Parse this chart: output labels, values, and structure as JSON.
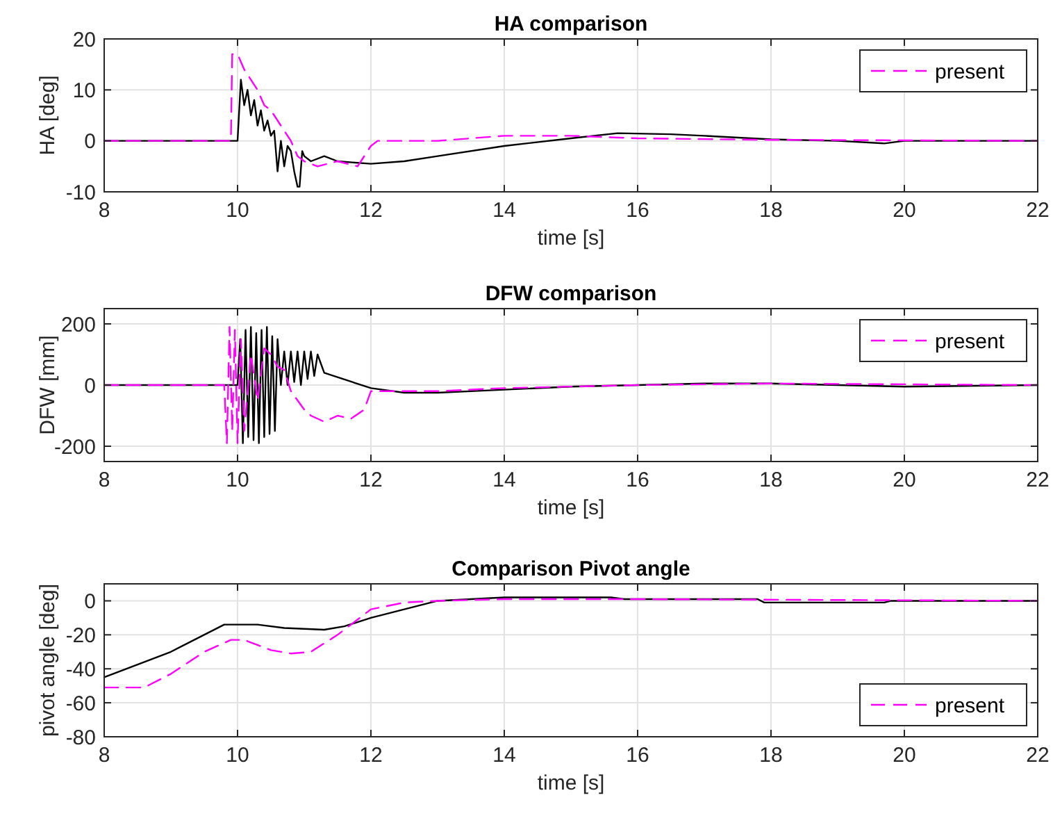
{
  "chart_data": [
    {
      "type": "line",
      "title": "HA comparison",
      "xlabel": "time [s]",
      "ylabel": "HA [deg]",
      "xlim": [
        8,
        22
      ],
      "xticks": [
        8,
        10,
        12,
        14,
        16,
        18,
        20,
        22
      ],
      "ylim": [
        -10,
        20
      ],
      "yticks": [
        -10,
        0,
        10,
        20
      ],
      "grid": true,
      "legend": "top right",
      "series": [
        {
          "color": "#000000",
          "line_style": "solid",
          "x": [
            8,
            10.0,
            10.05,
            10.1,
            10.15,
            10.2,
            10.25,
            10.3,
            10.35,
            10.4,
            10.45,
            10.5,
            10.55,
            10.6,
            10.65,
            10.7,
            10.75,
            10.8,
            10.85,
            10.9,
            10.93,
            10.97,
            11.0,
            11.1,
            11.3,
            11.5,
            12.0,
            12.5,
            13,
            14,
            15,
            15.7,
            16.5,
            17,
            18,
            19,
            19.7,
            20,
            22
          ],
          "values": [
            0,
            0,
            12,
            7,
            10,
            5,
            8,
            3,
            6,
            2,
            4,
            1,
            2,
            -6,
            0,
            -5,
            -1,
            -2,
            -6,
            -9,
            -9,
            -2,
            -3,
            -4,
            -3,
            -4,
            -4.5,
            -4,
            -3,
            -1,
            0.5,
            1.5,
            1.3,
            1,
            0.3,
            0,
            -0.5,
            0,
            0
          ]
        },
        {
          "name": "present",
          "color": "#ff00ff",
          "line_style": "dashed",
          "x": [
            8,
            9.9,
            9.92,
            10.0,
            10.1,
            10.2,
            10.3,
            10.4,
            10.5,
            10.6,
            10.7,
            10.8,
            10.9,
            11.0,
            11.2,
            11.5,
            11.8,
            12.0,
            12.1,
            13,
            13.5,
            14,
            15,
            16,
            18,
            22
          ],
          "values": [
            0,
            0,
            17,
            17,
            14,
            12,
            10,
            7,
            6,
            4,
            2,
            0,
            -3,
            -4,
            -5,
            -4,
            -5,
            -1,
            0,
            0,
            0.5,
            1,
            1,
            0.5,
            0.2,
            0
          ]
        }
      ]
    },
    {
      "type": "line",
      "title": "DFW comparison",
      "xlabel": "time [s]",
      "ylabel": "DFW [mm]",
      "xlim": [
        8,
        22
      ],
      "xticks": [
        8,
        10,
        12,
        14,
        16,
        18,
        20,
        22
      ],
      "ylim": [
        -250,
        250
      ],
      "yticks": [
        -200,
        0,
        200
      ],
      "grid": true,
      "legend": "top right",
      "series": [
        {
          "color": "#000000",
          "line_style": "solid",
          "x": [
            8,
            10.0,
            10.04,
            10.08,
            10.12,
            10.16,
            10.2,
            10.24,
            10.28,
            10.32,
            10.36,
            10.4,
            10.44,
            10.48,
            10.52,
            10.56,
            10.6,
            10.65,
            10.7,
            10.75,
            10.8,
            10.85,
            10.9,
            10.95,
            11.0,
            11.05,
            11.1,
            11.15,
            11.2,
            11.3,
            12,
            12.5,
            13,
            14,
            15,
            16,
            17,
            18,
            19,
            20,
            22
          ],
          "values": [
            0,
            0,
            150,
            -190,
            180,
            -170,
            190,
            -180,
            170,
            -190,
            180,
            -170,
            190,
            -160,
            160,
            -150,
            150,
            0,
            110,
            0,
            110,
            10,
            110,
            0,
            110,
            20,
            110,
            30,
            100,
            40,
            -10,
            -25,
            -25,
            -15,
            -5,
            0,
            5,
            5,
            0,
            -5,
            0
          ]
        },
        {
          "name": "present",
          "color": "#ff00ff",
          "line_style": "dashed",
          "x": [
            8,
            9.8,
            9.84,
            9.88,
            9.92,
            9.96,
            10.0,
            10.05,
            10.1,
            10.2,
            10.3,
            10.4,
            10.5,
            10.6,
            10.7,
            10.8,
            10.9,
            11.0,
            11.1,
            11.3,
            11.5,
            11.7,
            11.9,
            12.0,
            13,
            14,
            16,
            18,
            22
          ],
          "values": [
            0,
            0,
            -190,
            190,
            -150,
            180,
            -190,
            150,
            -150,
            100,
            -50,
            120,
            100,
            60,
            50,
            -20,
            -50,
            -80,
            -100,
            -120,
            -100,
            -110,
            -80,
            -20,
            -20,
            -10,
            0,
            5,
            0
          ]
        }
      ]
    },
    {
      "type": "line",
      "title": "Comparison Pivot angle",
      "xlabel": "time [s]",
      "ylabel": "pivot angle [deg]",
      "xlim": [
        8,
        22
      ],
      "xticks": [
        8,
        10,
        12,
        14,
        16,
        18,
        20,
        22
      ],
      "ylim": [
        -80,
        10
      ],
      "yticks": [
        -80,
        -60,
        -40,
        -20,
        0
      ],
      "grid": true,
      "legend": "bottom right",
      "series": [
        {
          "color": "#000000",
          "line_style": "solid",
          "x": [
            8,
            9,
            9.8,
            10.3,
            10.7,
            11.3,
            11.6,
            12,
            12.5,
            13,
            13.5,
            14,
            15.6,
            15.8,
            17.8,
            17.9,
            19.7,
            19.8,
            22
          ],
          "values": [
            -45,
            -30,
            -14,
            -14,
            -16,
            -17,
            -15,
            -10,
            -5,
            0,
            1,
            2,
            2,
            1,
            1,
            -1,
            -1,
            0,
            0
          ]
        },
        {
          "name": "present",
          "color": "#ff00ff",
          "line_style": "dashed",
          "x": [
            8,
            8.6,
            9,
            9.5,
            9.9,
            10.1,
            10.5,
            10.8,
            11.1,
            11.5,
            12,
            12.5,
            13,
            14,
            16,
            22
          ],
          "values": [
            -51,
            -51,
            -43,
            -30,
            -23,
            -23,
            -29,
            -31,
            -30,
            -20,
            -5,
            -1,
            0,
            1,
            1,
            0
          ]
        }
      ]
    }
  ]
}
